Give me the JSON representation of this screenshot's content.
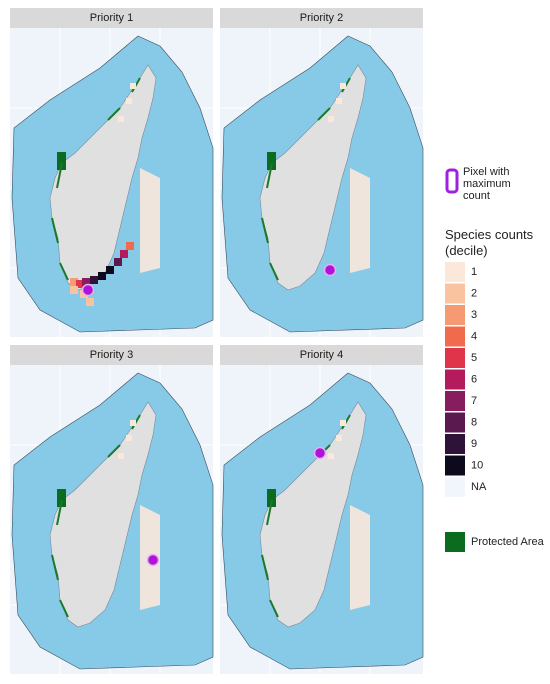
{
  "panels": [
    {
      "title": "Priority 1"
    },
    {
      "title": "Priority 2"
    },
    {
      "title": "Priority 3"
    },
    {
      "title": "Priority 4"
    }
  ],
  "legend": {
    "max_pixel_label": "Pixel with maximum count",
    "species_title": "Species counts (decile)",
    "deciles": [
      {
        "label": "1",
        "color": "#fbe8da"
      },
      {
        "label": "2",
        "color": "#f9c3a0"
      },
      {
        "label": "3",
        "color": "#f59a72"
      },
      {
        "label": "4",
        "color": "#f06a4e"
      },
      {
        "label": "5",
        "color": "#e0344a"
      },
      {
        "label": "6",
        "color": "#b51b5c"
      },
      {
        "label": "7",
        "color": "#881d5e"
      },
      {
        "label": "8",
        "color": "#5a1a4f"
      },
      {
        "label": "9",
        "color": "#2e1238"
      },
      {
        "label": "10",
        "color": "#0c0a1c"
      },
      {
        "label": "NA",
        "color": "#f0f6fc"
      }
    ],
    "protected_label": "Protected Area"
  }
}
